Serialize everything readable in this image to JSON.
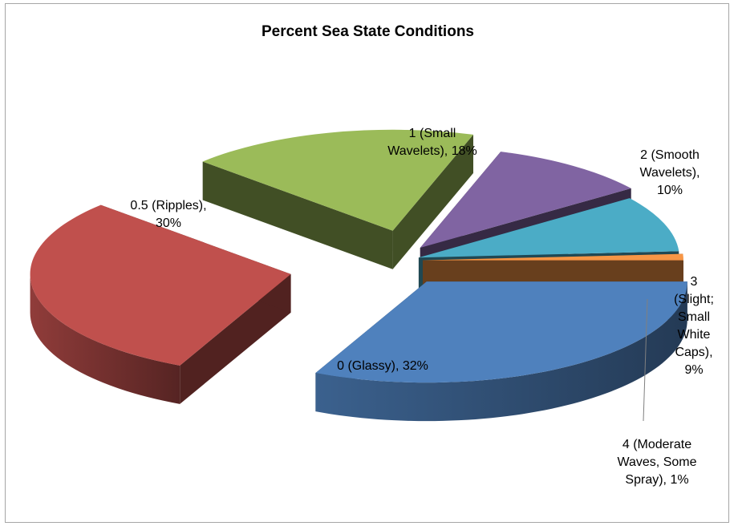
{
  "chart_data": {
    "type": "pie",
    "title": "Percent Sea State Conditions",
    "series": [
      {
        "name": "",
        "slices": [
          {
            "category": "0 (Glassy)",
            "value": 32,
            "color": "#4f81bd",
            "label_lines": [
              "0 (Glassy), 32%"
            ]
          },
          {
            "category": "0.5 (Ripples)",
            "value": 30,
            "color": "#c0504d",
            "label_lines": [
              "0.5 (Ripples),",
              "30%"
            ]
          },
          {
            "category": "1 (Small Wavelets)",
            "value": 18,
            "color": "#9bbb59",
            "label_lines": [
              "1 (Small",
              "Wavelets), 18%"
            ]
          },
          {
            "category": "2 (Smooth Wavelets)",
            "value": 10,
            "color": "#8064a2",
            "label_lines": [
              "2 (Smooth",
              "Wavelets),",
              "10%"
            ]
          },
          {
            "category": "3 (Slight; Small White Caps)",
            "value": 9,
            "color": "#4bacc6",
            "label_lines": [
              "3",
              "(Slight;",
              "Small",
              "White",
              "Caps),",
              "9%"
            ]
          },
          {
            "category": "4 (Moderate Waves, Some Spray)",
            "value": 1,
            "color": "#f79646",
            "label_lines": [
              "4 (Moderate",
              "Waves, Some",
              "Spray), 1%"
            ]
          }
        ]
      }
    ],
    "exploded": true,
    "three_d": true,
    "legend": "none"
  }
}
